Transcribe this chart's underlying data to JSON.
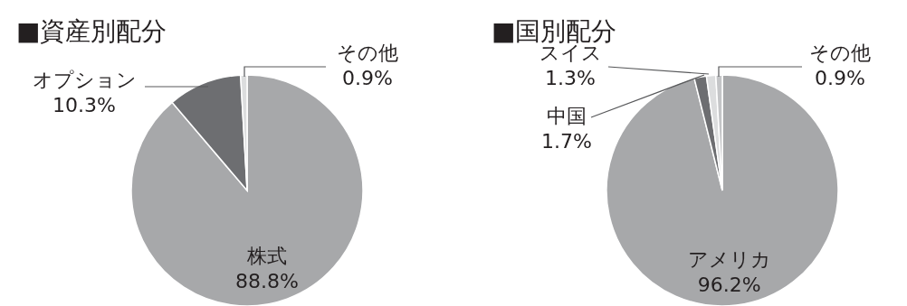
{
  "chart_data": [
    {
      "type": "pie",
      "title": "■資産別配分",
      "categories": [
        "株式",
        "オプション",
        "その他"
      ],
      "values": [
        88.8,
        10.3,
        0.9
      ],
      "colors": [
        "#a7a8aa",
        "#6d6e71",
        "#dcddde"
      ],
      "value_labels": [
        "88.8%",
        "10.3%",
        "0.9%"
      ]
    },
    {
      "type": "pie",
      "title": "■国別配分",
      "categories": [
        "アメリカ",
        "中国",
        "スイス",
        "その他"
      ],
      "values": [
        96.2,
        1.7,
        1.3,
        0.9
      ],
      "colors": [
        "#a7a8aa",
        "#6d6e71",
        "#dcddde",
        "#c4c5c7"
      ],
      "value_labels": [
        "96.2%",
        "1.7%",
        "1.3%",
        "0.9%"
      ]
    }
  ]
}
